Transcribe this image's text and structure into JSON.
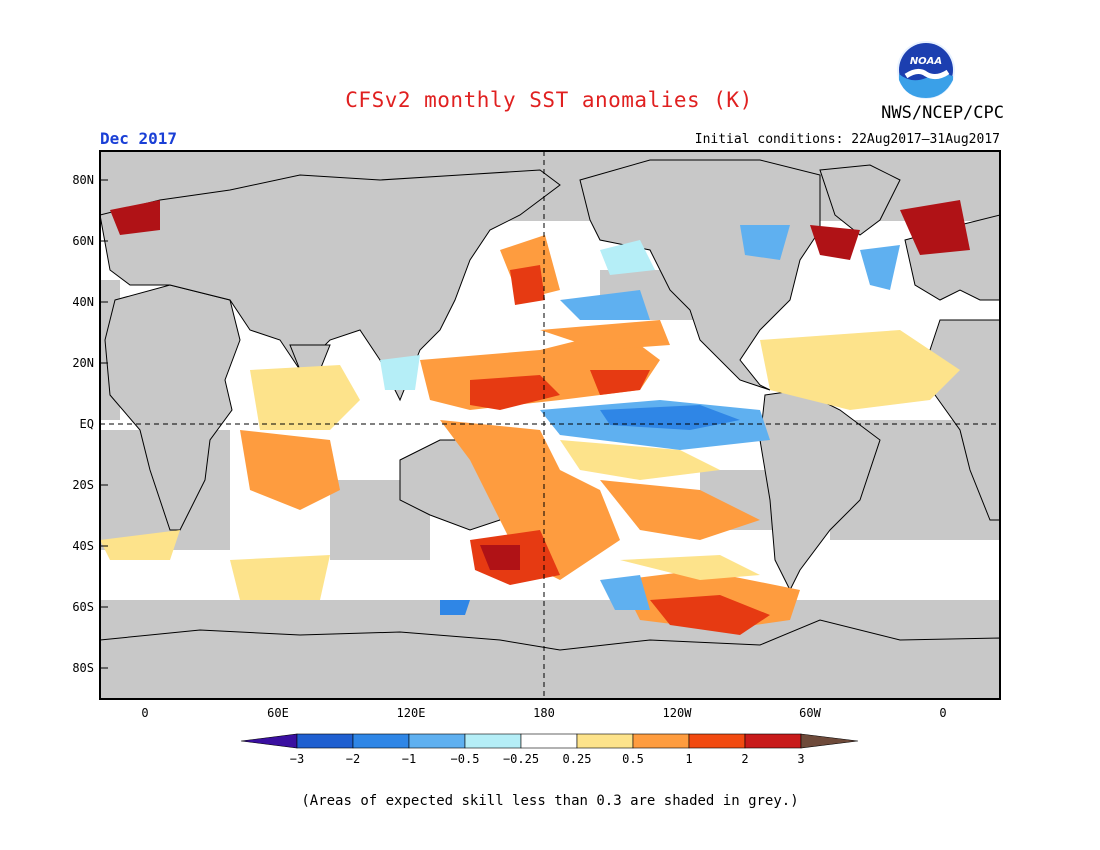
{
  "header": {
    "title": "CFSv2 monthly SST anomalies (K)",
    "agency": "NWS/NCEP/CPC",
    "month": "Dec 2017",
    "initial_conditions": "Initial conditions: 22Aug2017–31Aug2017",
    "logo_text": "NOAA"
  },
  "axes": {
    "lat_labels": [
      "80N",
      "60N",
      "40N",
      "20N",
      "EQ",
      "20S",
      "40S",
      "60S",
      "80S"
    ],
    "lon_labels": [
      "0",
      "60E",
      "120E",
      "180",
      "120W",
      "60W",
      "0"
    ]
  },
  "colorbar": {
    "labels": [
      "−3",
      "−2",
      "−1",
      "−0.5",
      "−0.25",
      "0.25",
      "0.5",
      "1",
      "2",
      "3"
    ],
    "colors": [
      "#3a0fa0",
      "#1f5fd0",
      "#2f86e6",
      "#5fb0f0",
      "#b5eef7",
      "#ffffff",
      "#fde38b",
      "#fe9c3f",
      "#f24a10",
      "#d01a1a",
      "#a30d10",
      "#6e4a3a"
    ]
  },
  "colors": {
    "land": "#c8c8c8",
    "ocean_neutral": "#ffffff",
    "title_red": "#e02020",
    "month_blue": "#1a3fd6"
  },
  "footnote": "(Areas of expected skill less than 0.3 are shaded in grey.)"
}
